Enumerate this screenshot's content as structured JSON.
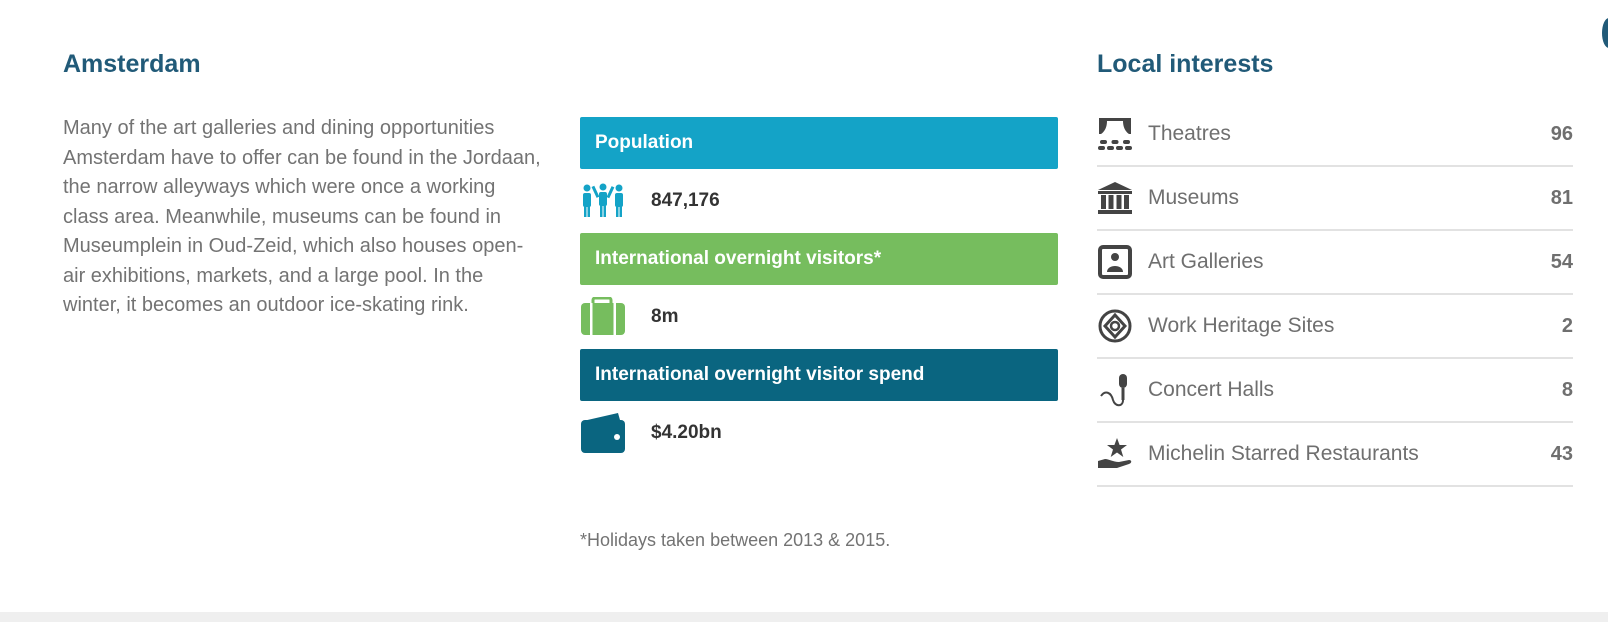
{
  "city": {
    "title": "Amsterdam",
    "description": "Many of the art galleries and dining opportunities Amsterdam have to offer can be found in the Jordaan, the narrow alleyways which were once a working class area. Meanwhile, museums can be found in Museumplein in Oud-Zeid, which also houses open-air exhibitions, markets, and a large pool. In the winter, it becomes an outdoor ice-skating rink."
  },
  "stats": [
    {
      "label": "Population",
      "value": "847,176",
      "color": "#14a3c7",
      "icon": "people-icon"
    },
    {
      "label": "International overnight visitors*",
      "value": "8m",
      "color": "#76bd5e",
      "icon": "suitcase-icon"
    },
    {
      "label": "International overnight visitor spend",
      "value": "$4.20bn",
      "color": "#0a6580",
      "icon": "wallet-icon"
    }
  ],
  "footnote": "*Holidays taken between 2013 & 2015.",
  "interests": {
    "title": "Local interests",
    "items": [
      {
        "label": "Theatres",
        "count": "96",
        "icon": "theatre-icon"
      },
      {
        "label": "Museums",
        "count": "81",
        "icon": "museum-icon"
      },
      {
        "label": "Art Galleries",
        "count": "54",
        "icon": "art-gallery-icon"
      },
      {
        "label": "Work Heritage Sites",
        "count": "2",
        "icon": "heritage-icon"
      },
      {
        "label": "Concert Halls",
        "count": "8",
        "icon": "microphone-icon"
      },
      {
        "label": "Michelin Starred Restaurants",
        "count": "43",
        "icon": "michelin-star-icon"
      }
    ]
  }
}
